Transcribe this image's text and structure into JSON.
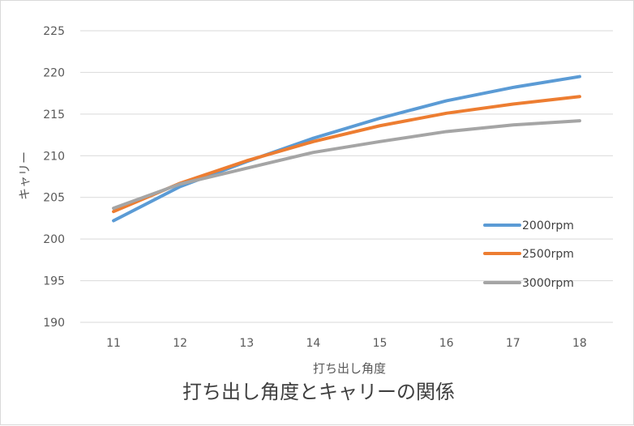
{
  "chart_data": {
    "type": "line",
    "title": "打ち出し角度とキャリーの関係",
    "xlabel": "打ち出し角度",
    "ylabel": "キャリー",
    "categories": [
      11,
      12,
      13,
      14,
      15,
      16,
      17,
      18
    ],
    "ylim": [
      190,
      225
    ],
    "yticks": [
      190,
      195,
      200,
      205,
      210,
      215,
      220,
      225
    ],
    "grid": "horizontal",
    "legend_position": "right",
    "series": [
      {
        "name": "2000rpm",
        "color": "#5b9bd5",
        "values": [
          202.2,
          206.3,
          209.3,
          212.1,
          214.5,
          216.6,
          218.2,
          219.5
        ]
      },
      {
        "name": "2500rpm",
        "color": "#ed7d31",
        "values": [
          203.3,
          206.7,
          209.4,
          211.7,
          213.6,
          215.1,
          216.2,
          217.1
        ]
      },
      {
        "name": "3000rpm",
        "color": "#a5a5a5",
        "values": [
          203.7,
          206.6,
          208.5,
          210.4,
          211.7,
          212.9,
          213.7,
          214.2
        ]
      }
    ]
  }
}
